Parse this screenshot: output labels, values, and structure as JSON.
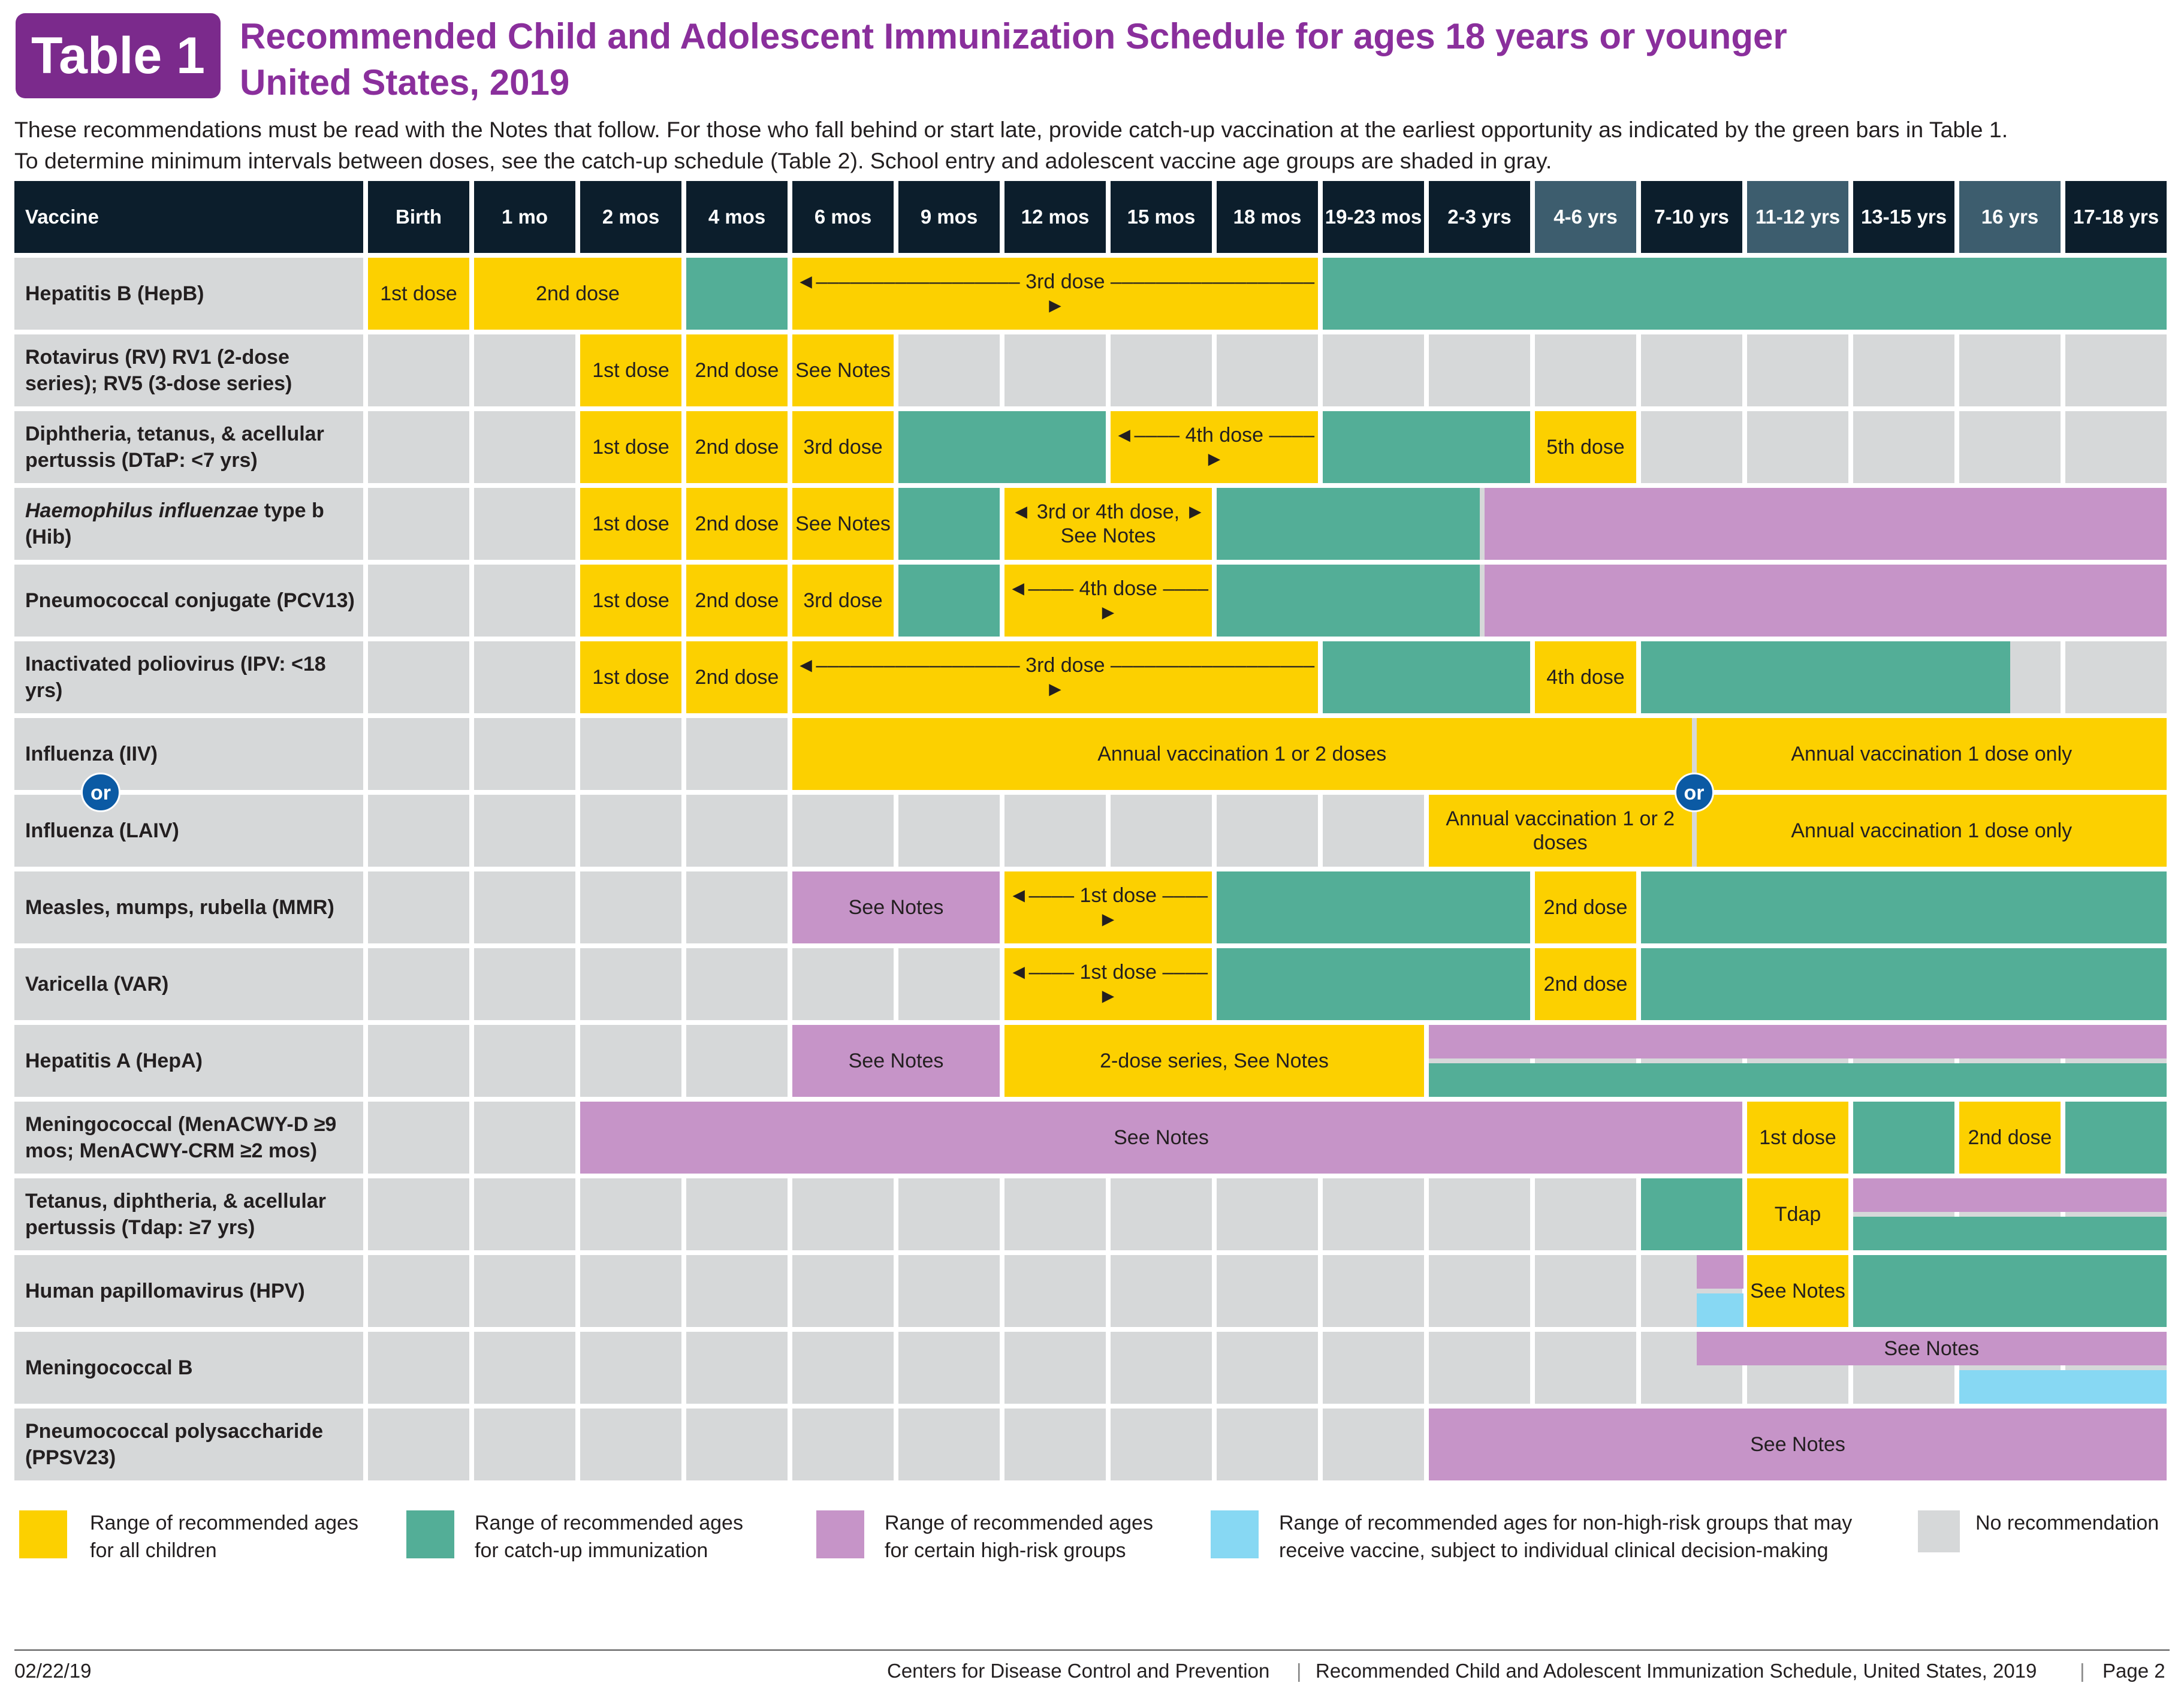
{
  "header": {
    "badge": "Table 1",
    "title_line1": "Recommended Child and Adolescent Immunization Schedule for ages 18 years or younger",
    "title_line2": "United States, 2019",
    "intro_line1": "These recommendations must be read with the Notes that follow. For those who fall behind or start late, provide catch-up vaccination at the earliest opportunity as indicated by the green bars in Table 1.",
    "intro_line2": "To determine minimum intervals between doses, see the catch-up schedule (Table 2). School entry and adolescent vaccine age groups are shaded in gray."
  },
  "colors": {
    "yellow": "#fcd000",
    "green": "#53ae97",
    "purple": "#c694c8",
    "blue": "#87d8f3",
    "gray": "#d6d8d9",
    "header_dark": "#0c1e2c",
    "header_shaded": "#3d5d6e",
    "or_blue": "#0b5aa4"
  },
  "table": {
    "vaccine_header": "Vaccine",
    "columns": [
      "Birth",
      "1 mo",
      "2 mos",
      "4 mos",
      "6 mos",
      "9 mos",
      "12 mos",
      "15 mos",
      "18 mos",
      "19-23 mos",
      "2-3 yrs",
      "4-6 yrs",
      "7-10 yrs",
      "11-12 yrs",
      "13-15 yrs",
      "16 yrs",
      "17-18 yrs"
    ],
    "shaded_columns": [
      11,
      13,
      15
    ],
    "rows": [
      {
        "name": "Hepatitis B (HepB)",
        "bars": [
          {
            "c0": 0,
            "c1": 0,
            "color": "yellow",
            "label": "1st dose"
          },
          {
            "c0": 1,
            "c1": 2,
            "color": "yellow",
            "label": "2nd dose"
          },
          {
            "c0": 3,
            "c1": 3,
            "color": "green",
            "label": ""
          },
          {
            "c0": 4,
            "c1": 8,
            "color": "yellow",
            "label": "◄–––––––––––––––––– 3rd dose ––––––––––––––––––►"
          },
          {
            "c0": 9,
            "c1": 16,
            "color": "green",
            "label": ""
          }
        ]
      },
      {
        "name": "Rotavirus (RV) RV1 (2-dose series); RV5 (3-dose series)",
        "bars": [
          {
            "c0": 2,
            "c1": 2,
            "color": "yellow",
            "label": "1st dose"
          },
          {
            "c0": 3,
            "c1": 3,
            "color": "yellow",
            "label": "2nd dose"
          },
          {
            "c0": 4,
            "c1": 4,
            "color": "yellow",
            "label": "See Notes"
          }
        ]
      },
      {
        "name": "Diphtheria, tetanus, & acellular pertussis (DTaP: <7 yrs)",
        "bars": [
          {
            "c0": 2,
            "c1": 2,
            "color": "yellow",
            "label": "1st dose"
          },
          {
            "c0": 3,
            "c1": 3,
            "color": "yellow",
            "label": "2nd dose"
          },
          {
            "c0": 4,
            "c1": 4,
            "color": "yellow",
            "label": "3rd dose"
          },
          {
            "c0": 5,
            "c1": 6,
            "color": "green",
            "label": ""
          },
          {
            "c0": 7,
            "c1": 8,
            "color": "yellow",
            "label": "◄–––– 4th dose ––––►"
          },
          {
            "c0": 9,
            "c1": 10,
            "color": "green",
            "label": ""
          },
          {
            "c0": 11,
            "c1": 11,
            "color": "yellow",
            "label": "5th dose"
          }
        ]
      },
      {
        "name": "Haemophilus influenzae type b (Hib)",
        "bars": [
          {
            "c0": 2,
            "c1": 2,
            "color": "yellow",
            "label": "1st dose"
          },
          {
            "c0": 3,
            "c1": 3,
            "color": "yellow",
            "label": "2nd dose"
          },
          {
            "c0": 4,
            "c1": 4,
            "color": "yellow",
            "label": "See Notes"
          },
          {
            "c0": 5,
            "c1": 5,
            "color": "green",
            "label": ""
          },
          {
            "c0": 6,
            "c1": 7,
            "color": "yellow",
            "label": "◄ 3rd or 4th dose, ► See Notes"
          },
          {
            "c0": 8,
            "c1": 10.5,
            "color": "green",
            "label": ""
          },
          {
            "c0": 10.5,
            "c1": 16,
            "color": "purple",
            "label": ""
          }
        ]
      },
      {
        "name": "Pneumococcal conjugate (PCV13)",
        "bars": [
          {
            "c0": 2,
            "c1": 2,
            "color": "yellow",
            "label": "1st dose"
          },
          {
            "c0": 3,
            "c1": 3,
            "color": "yellow",
            "label": "2nd dose"
          },
          {
            "c0": 4,
            "c1": 4,
            "color": "yellow",
            "label": "3rd dose"
          },
          {
            "c0": 5,
            "c1": 5,
            "color": "green",
            "label": ""
          },
          {
            "c0": 6,
            "c1": 7,
            "color": "yellow",
            "label": "◄–––– 4th dose ––––►"
          },
          {
            "c0": 8,
            "c1": 10.5,
            "color": "green",
            "label": ""
          },
          {
            "c0": 10.5,
            "c1": 16,
            "color": "purple",
            "label": ""
          }
        ]
      },
      {
        "name": "Inactivated poliovirus (IPV: <18 yrs)",
        "bars": [
          {
            "c0": 2,
            "c1": 2,
            "color": "yellow",
            "label": "1st dose"
          },
          {
            "c0": 3,
            "c1": 3,
            "color": "yellow",
            "label": "2nd dose"
          },
          {
            "c0": 4,
            "c1": 8,
            "color": "yellow",
            "label": "◄–––––––––––––––––– 3rd dose ––––––––––––––––––►"
          },
          {
            "c0": 9,
            "c1": 10,
            "color": "green",
            "label": ""
          },
          {
            "c0": 11,
            "c1": 11,
            "color": "yellow",
            "label": "4th dose"
          },
          {
            "c0": 12,
            "c1": 15.5,
            "color": "green",
            "label": ""
          }
        ]
      },
      {
        "name": "Influenza (IIV)",
        "bars": [
          {
            "c0": 4,
            "c1": 12.5,
            "color": "yellow",
            "label": "Annual vaccination 1 or 2 doses"
          },
          {
            "c0": 12.5,
            "c1": 16,
            "color": "yellow",
            "label": "Annual vaccination 1 dose only"
          }
        ]
      },
      {
        "name": "Influenza (LAIV)",
        "bars": [
          {
            "c0": 10,
            "c1": 12.5,
            "color": "yellow",
            "label": "Annual vaccination 1 or 2 doses"
          },
          {
            "c0": 12.5,
            "c1": 16,
            "color": "yellow",
            "label": "Annual vaccination 1 dose only"
          }
        ]
      },
      {
        "name": "Measles, mumps, rubella (MMR)",
        "bars": [
          {
            "c0": 4,
            "c1": 5,
            "color": "purple",
            "label": "See Notes"
          },
          {
            "c0": 6,
            "c1": 7,
            "color": "yellow",
            "label": "◄–––– 1st dose ––––►"
          },
          {
            "c0": 8,
            "c1": 10,
            "color": "green",
            "label": ""
          },
          {
            "c0": 11,
            "c1": 11,
            "color": "yellow",
            "label": "2nd dose"
          },
          {
            "c0": 12,
            "c1": 16,
            "color": "green",
            "label": ""
          }
        ]
      },
      {
        "name": "Varicella (VAR)",
        "bars": [
          {
            "c0": 6,
            "c1": 7,
            "color": "yellow",
            "label": "◄–––– 1st dose ––––►"
          },
          {
            "c0": 8,
            "c1": 10,
            "color": "green",
            "label": ""
          },
          {
            "c0": 11,
            "c1": 11,
            "color": "yellow",
            "label": "2nd dose"
          },
          {
            "c0": 12,
            "c1": 16,
            "color": "green",
            "label": ""
          }
        ]
      },
      {
        "name": "Hepatitis A (HepA)",
        "bars": [
          {
            "c0": 4,
            "c1": 5,
            "color": "purple",
            "label": "See Notes"
          },
          {
            "c0": 6,
            "c1": 9,
            "color": "yellow",
            "label": "2-dose series, See Notes"
          },
          {
            "c0": 10,
            "c1": 16,
            "color": "purple",
            "label": "",
            "half": "top"
          },
          {
            "c0": 10,
            "c1": 16,
            "color": "green",
            "label": "",
            "half": "bottom"
          }
        ]
      },
      {
        "name": "Meningococcal (MenACWY-D ≥9 mos; MenACWY-CRM ≥2 mos)",
        "bars": [
          {
            "c0": 2,
            "c1": 12,
            "color": "purple",
            "label": "See Notes"
          },
          {
            "c0": 13,
            "c1": 13,
            "color": "yellow",
            "label": "1st dose"
          },
          {
            "c0": 14,
            "c1": 14,
            "color": "green",
            "label": ""
          },
          {
            "c0": 15,
            "c1": 15,
            "color": "yellow",
            "label": "2nd dose"
          },
          {
            "c0": 16,
            "c1": 16,
            "color": "green",
            "label": ""
          }
        ]
      },
      {
        "name": "Tetanus, diphtheria, & acellular pertussis (Tdap: ≥7 yrs)",
        "bars": [
          {
            "c0": 12,
            "c1": 12,
            "color": "green",
            "label": ""
          },
          {
            "c0": 13,
            "c1": 13,
            "color": "yellow",
            "label": "Tdap"
          },
          {
            "c0": 14,
            "c1": 16,
            "color": "purple",
            "label": "",
            "half": "top"
          },
          {
            "c0": 14,
            "c1": 16,
            "color": "green",
            "label": "",
            "half": "bottom"
          }
        ]
      },
      {
        "name": "Human papillomavirus (HPV)",
        "bars": [
          {
            "c0": 12,
            "c1": 12.5,
            "color": "gray",
            "label": "",
            "half": "top"
          },
          {
            "c0": 12,
            "c1": 12.5,
            "color": "gray",
            "label": "",
            "half": "bottom"
          },
          {
            "c0": 12.5,
            "c1": 12.99,
            "color": "purple",
            "label": "",
            "half": "top"
          },
          {
            "c0": 12.5,
            "c1": 12.99,
            "color": "blue",
            "label": "",
            "half": "bottom"
          },
          {
            "c0": 13,
            "c1": 13,
            "color": "yellow",
            "label": "See Notes"
          },
          {
            "c0": 14,
            "c1": 16,
            "color": "green",
            "label": ""
          }
        ]
      },
      {
        "name": "Meningococcal B",
        "bars": [
          {
            "c0": 12,
            "c1": 12.5,
            "color": "gray",
            "label": "",
            "half": "top"
          },
          {
            "c0": 12.5,
            "c1": 16,
            "color": "purple",
            "label": "See Notes",
            "half": "top"
          },
          {
            "c0": 12,
            "c1": 12,
            "color": "gray",
            "label": "",
            "half": "bottom"
          },
          {
            "c0": 13,
            "c1": 13,
            "color": "gray",
            "label": "",
            "half": "bottom"
          },
          {
            "c0": 14,
            "c1": 14,
            "color": "gray",
            "label": "",
            "half": "bottom"
          },
          {
            "c0": 15,
            "c1": 16,
            "color": "blue",
            "label": "",
            "half": "bottom"
          }
        ]
      },
      {
        "name": "Pneumococcal polysaccharide (PPSV23)",
        "bars": [
          {
            "c0": 10,
            "c1": 16,
            "color": "purple",
            "label": "See Notes"
          }
        ]
      }
    ],
    "or_label": "or"
  },
  "legend": [
    {
      "color": "yellow",
      "text1": "Range of recommended ages",
      "text2": "for all children"
    },
    {
      "color": "green",
      "text1": "Range of recommended ages",
      "text2": "for catch-up immunization"
    },
    {
      "color": "purple",
      "text1": "Range of recommended ages",
      "text2": "for certain high-risk groups"
    },
    {
      "color": "blue",
      "text1": "Range of recommended ages for non-high-risk groups that may",
      "text2": "receive vaccine, subject to individual clinical decision-making"
    },
    {
      "color": "gray",
      "text1": "No recommendation",
      "text2": ""
    }
  ],
  "footer": {
    "date": "02/22/19",
    "agency": "Centers for Disease Control and Prevention",
    "doc_title": "Recommended Child and Adolescent Immunization Schedule, United States, 2019",
    "page": "Page 2"
  }
}
